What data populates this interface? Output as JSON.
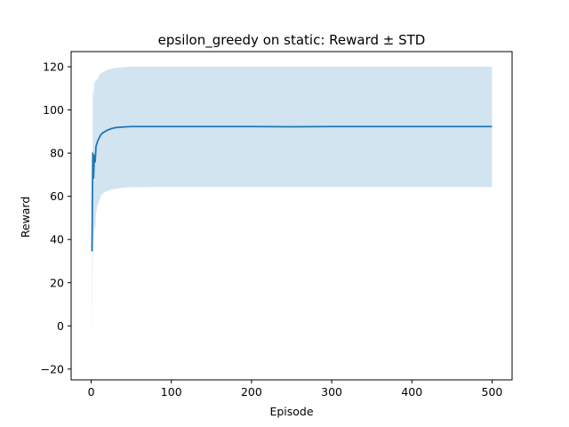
{
  "chart_data": {
    "type": "line",
    "title": "epsilon_greedy on static: Reward ± STD",
    "xlabel": "Episode",
    "ylabel": "Reward",
    "xlim": [
      -25,
      525
    ],
    "ylim": [
      -25,
      127
    ],
    "xticks": [
      0,
      100,
      200,
      300,
      400,
      500
    ],
    "yticks": [
      -20,
      0,
      20,
      40,
      60,
      80,
      100,
      120
    ],
    "grid": false,
    "colors": {
      "line": "#1f77b4",
      "band": "#1f77b4"
    },
    "band_alpha": 0.2,
    "series": [
      {
        "x": [
          1,
          2,
          3,
          4,
          5,
          6,
          8,
          10,
          12,
          15,
          20,
          25,
          30,
          40,
          50,
          75,
          100,
          150,
          200,
          250,
          300,
          350,
          400,
          450,
          500
        ],
        "mean": [
          34.5,
          80.0,
          68.5,
          79.0,
          76.0,
          83.0,
          85.5,
          87.0,
          88.5,
          89.5,
          90.6,
          91.3,
          91.8,
          92.1,
          92.3,
          92.3,
          92.3,
          92.3,
          92.3,
          92.2,
          92.3,
          92.3,
          92.3,
          92.3,
          92.3
        ],
        "upper": [
          -8,
          110,
          106,
          114,
          112,
          114,
          114,
          116,
          117,
          117.5,
          118.5,
          119,
          119.5,
          119.8,
          120.0,
          120.0,
          120.0,
          120.0,
          120.0,
          120.0,
          120.0,
          120.0,
          120.0,
          120.0,
          120.0
        ],
        "lower": [
          -8,
          30,
          40,
          46,
          44,
          52,
          56,
          58,
          60,
          61.5,
          62.5,
          63,
          63.5,
          64.0,
          64.2,
          64.3,
          64.3,
          64.3,
          64.3,
          64.3,
          64.3,
          64.3,
          64.3,
          64.3,
          64.3
        ]
      }
    ]
  }
}
